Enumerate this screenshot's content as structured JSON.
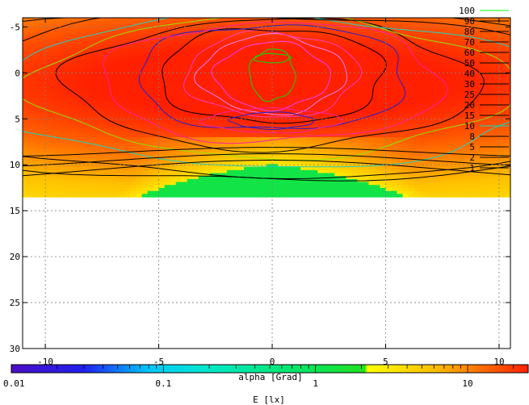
{
  "chart_data": {
    "type": "heatmap",
    "x": {
      "range": [
        -11,
        10.5
      ],
      "ticks": [
        -10,
        -5,
        0,
        5,
        10
      ],
      "tick_labels": [
        "-10",
        "-5",
        "0",
        "5",
        "10"
      ],
      "label": "alpha [Grad]"
    },
    "y": {
      "range": [
        -6,
        30
      ],
      "inverted": true,
      "ticks": [
        -5,
        0,
        5,
        10,
        15,
        20,
        25,
        30
      ],
      "tick_labels": [
        "-5",
        "0",
        "5",
        "10",
        "15",
        "20",
        "25",
        "30"
      ],
      "label": ""
    },
    "data_extent": {
      "x": [
        -11,
        10.5
      ],
      "y": [
        -6,
        13.5
      ]
    },
    "grid": true,
    "colorbar": {
      "scale": "log",
      "range": [
        0.01,
        25
      ],
      "ticks": [
        0.01,
        0.1,
        1,
        10
      ],
      "tick_labels": [
        "0.01",
        "0.1",
        "1",
        "10"
      ],
      "label": "E [lx]",
      "stops": [
        {
          "v": 0.01,
          "color": "#4b0fc4"
        },
        {
          "v": 0.03,
          "color": "#2020f0"
        },
        {
          "v": 0.08,
          "color": "#00c8ff"
        },
        {
          "v": 0.2,
          "color": "#00e8c8"
        },
        {
          "v": 0.6,
          "color": "#00e878"
        },
        {
          "v": 2.1,
          "color": "#20e020"
        },
        {
          "v": 2.2,
          "color": "#ffff00"
        },
        {
          "v": 6,
          "color": "#ffc000"
        },
        {
          "v": 12,
          "color": "#ff7000"
        },
        {
          "v": 25,
          "color": "#ff2000"
        }
      ]
    },
    "legend": {
      "placement": "top-right",
      "entries": [
        {
          "label": "100",
          "color": "#00ff00"
        },
        {
          "label": "90",
          "color": "#000000"
        },
        {
          "label": "80",
          "color": "#000000"
        },
        {
          "label": "70",
          "color": "#000000"
        },
        {
          "label": "60",
          "color": "#000000"
        },
        {
          "label": "50",
          "color": "#000000"
        },
        {
          "label": "40",
          "color": "#000000"
        },
        {
          "label": "30",
          "color": "#000000"
        },
        {
          "label": "25",
          "color": "#000000"
        },
        {
          "label": "20",
          "color": "#000000"
        },
        {
          "label": "15",
          "color": "#000000"
        },
        {
          "label": "10",
          "color": "#00e0c0"
        },
        {
          "label": "8",
          "color": "#000000"
        },
        {
          "label": "5",
          "color": "#000000"
        },
        {
          "label": "2",
          "color": "#000000"
        },
        {
          "label": "1",
          "color": "#000000"
        }
      ]
    },
    "contours": [
      {
        "level": 100,
        "center": [
          0,
          0.2
        ],
        "rx": 1.0,
        "ry": 2.8,
        "color": "#00e000"
      },
      {
        "level": 80,
        "center": [
          0,
          0.3
        ],
        "rx": 2.5,
        "ry": 3.6,
        "color": "#ff40ff"
      },
      {
        "level": 70,
        "center": [
          0,
          0.2
        ],
        "rx": 3.2,
        "ry": 4.2,
        "color": "#ff80ff"
      },
      {
        "level": 60,
        "center": [
          0,
          0.2
        ],
        "rx": 3.8,
        "ry": 4.6,
        "color": "#ff40c0"
      },
      {
        "level": 50,
        "center": [
          0,
          0.3
        ],
        "rx": 5.0,
        "ry": 5.2,
        "color": "#000000"
      },
      {
        "level": 40,
        "center": [
          0,
          0.5
        ],
        "rx": 6.0,
        "ry": 5.8,
        "color": "#2020d0"
      },
      {
        "level": 30,
        "center": [
          0,
          1.0
        ],
        "rx": 7.5,
        "ry": 6.5,
        "color": "#ff20a0"
      },
      {
        "level": 25,
        "center": [
          0,
          1.2
        ],
        "rx": 9.0,
        "ry": 7.0,
        "color": "#000000"
      },
      {
        "level": 20,
        "center": [
          0,
          1.5
        ],
        "rx": 10.5,
        "ry": 7.6,
        "color": "#90e000"
      },
      {
        "level": 15,
        "center": [
          0,
          2.0
        ],
        "rx": 12.5,
        "ry": 8.2,
        "color": "#20d0c0"
      },
      {
        "level": 8,
        "center": [
          0,
          2.5
        ],
        "rx": 15.0,
        "ry": 9.0,
        "color": "#000000"
      },
      {
        "level": 5,
        "center": [
          0,
          2.5
        ],
        "rx": 17.0,
        "ry": 9.5,
        "color": "#000000"
      }
    ],
    "inner_contours": [
      {
        "center": [
          0,
          5.2
        ],
        "rx": 1.8,
        "ry": 0.9,
        "color": "#2020d0"
      },
      {
        "center": [
          0,
          5.2
        ],
        "rx": 3.0,
        "ry": 1.3,
        "color": "#ff20a0"
      },
      {
        "center": [
          0,
          -1.6
        ],
        "rx": 0.8,
        "ry": 0.5,
        "color": "#00e000"
      }
    ]
  }
}
